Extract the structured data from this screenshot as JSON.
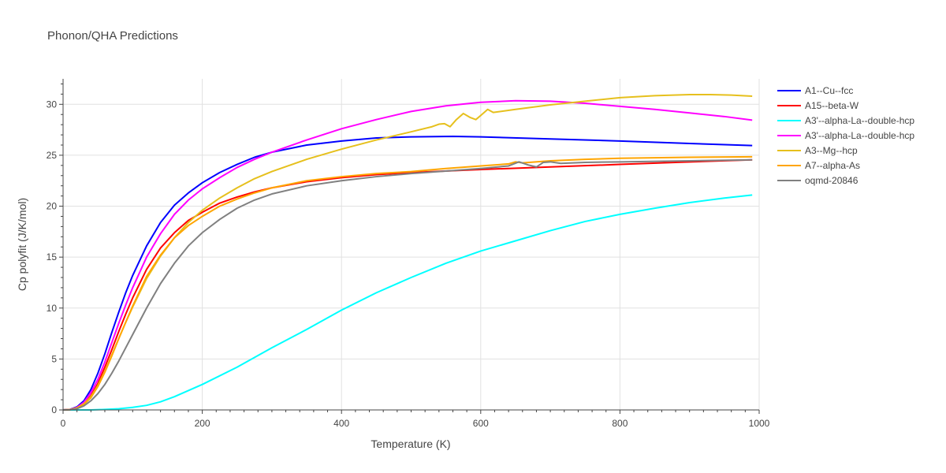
{
  "chart_data": {
    "type": "line",
    "title": "Phonon/QHA Predictions",
    "xlabel": "Temperature (K)",
    "ylabel": "Cp polyfit (J/K/mol)",
    "xlim": [
      0,
      1000
    ],
    "ylim": [
      0,
      32.5
    ],
    "xticks": [
      0,
      200,
      400,
      600,
      800,
      1000
    ],
    "yticks": [
      0,
      5,
      10,
      15,
      20,
      25,
      30
    ],
    "grid": true,
    "legend_position": "top-right",
    "series": [
      {
        "name": "A1--Cu--fcc",
        "color": "#0000ff",
        "points": [
          [
            0,
            0
          ],
          [
            10,
            0.05
          ],
          [
            20,
            0.3
          ],
          [
            30,
            0.9
          ],
          [
            40,
            2.0
          ],
          [
            50,
            3.6
          ],
          [
            60,
            5.5
          ],
          [
            70,
            7.6
          ],
          [
            80,
            9.6
          ],
          [
            90,
            11.5
          ],
          [
            100,
            13.2
          ],
          [
            120,
            16.1
          ],
          [
            140,
            18.4
          ],
          [
            160,
            20.1
          ],
          [
            180,
            21.3
          ],
          [
            200,
            22.3
          ],
          [
            225,
            23.3
          ],
          [
            250,
            24.1
          ],
          [
            275,
            24.8
          ],
          [
            300,
            25.3
          ],
          [
            350,
            26.0
          ],
          [
            400,
            26.4
          ],
          [
            450,
            26.7
          ],
          [
            500,
            26.8
          ],
          [
            560,
            26.85
          ],
          [
            600,
            26.8
          ],
          [
            700,
            26.6
          ],
          [
            800,
            26.4
          ],
          [
            900,
            26.15
          ],
          [
            990,
            25.95
          ]
        ]
      },
      {
        "name": "A15--beta-W",
        "color": "#ff0000",
        "points": [
          [
            0,
            0
          ],
          [
            10,
            0.03
          ],
          [
            20,
            0.2
          ],
          [
            30,
            0.6
          ],
          [
            40,
            1.4
          ],
          [
            50,
            2.6
          ],
          [
            60,
            4.2
          ],
          [
            70,
            5.9
          ],
          [
            80,
            7.7
          ],
          [
            90,
            9.4
          ],
          [
            100,
            11.0
          ],
          [
            120,
            13.8
          ],
          [
            140,
            15.9
          ],
          [
            160,
            17.4
          ],
          [
            180,
            18.6
          ],
          [
            200,
            19.4
          ],
          [
            225,
            20.3
          ],
          [
            250,
            20.9
          ],
          [
            275,
            21.4
          ],
          [
            300,
            21.8
          ],
          [
            350,
            22.4
          ],
          [
            400,
            22.8
          ],
          [
            450,
            23.1
          ],
          [
            500,
            23.3
          ],
          [
            600,
            23.6
          ],
          [
            700,
            23.85
          ],
          [
            800,
            24.1
          ],
          [
            900,
            24.35
          ],
          [
            990,
            24.55
          ]
        ]
      },
      {
        "name": "A3'--alpha-La--double-hcp",
        "color": "#00ffff",
        "points": [
          [
            0,
            0
          ],
          [
            40,
            0.0
          ],
          [
            60,
            0.05
          ],
          [
            80,
            0.12
          ],
          [
            100,
            0.25
          ],
          [
            120,
            0.45
          ],
          [
            140,
            0.8
          ],
          [
            160,
            1.3
          ],
          [
            180,
            1.9
          ],
          [
            200,
            2.5
          ],
          [
            250,
            4.2
          ],
          [
            300,
            6.1
          ],
          [
            350,
            7.9
          ],
          [
            400,
            9.8
          ],
          [
            450,
            11.5
          ],
          [
            500,
            13.0
          ],
          [
            550,
            14.4
          ],
          [
            600,
            15.6
          ],
          [
            650,
            16.6
          ],
          [
            700,
            17.6
          ],
          [
            750,
            18.5
          ],
          [
            800,
            19.2
          ],
          [
            850,
            19.8
          ],
          [
            900,
            20.35
          ],
          [
            950,
            20.8
          ],
          [
            990,
            21.1
          ]
        ]
      },
      {
        "name": "A3'--alpha-La--double-hcp",
        "color": "#ff00ff",
        "points": [
          [
            0,
            0
          ],
          [
            10,
            0.04
          ],
          [
            20,
            0.25
          ],
          [
            30,
            0.75
          ],
          [
            40,
            1.7
          ],
          [
            50,
            3.0
          ],
          [
            60,
            4.7
          ],
          [
            70,
            6.6
          ],
          [
            80,
            8.5
          ],
          [
            90,
            10.3
          ],
          [
            100,
            12.0
          ],
          [
            120,
            15.0
          ],
          [
            140,
            17.3
          ],
          [
            160,
            19.2
          ],
          [
            180,
            20.6
          ],
          [
            200,
            21.7
          ],
          [
            225,
            22.8
          ],
          [
            250,
            23.8
          ],
          [
            275,
            24.6
          ],
          [
            300,
            25.3
          ],
          [
            350,
            26.5
          ],
          [
            400,
            27.6
          ],
          [
            450,
            28.5
          ],
          [
            500,
            29.3
          ],
          [
            550,
            29.85
          ],
          [
            600,
            30.2
          ],
          [
            650,
            30.35
          ],
          [
            700,
            30.3
          ],
          [
            750,
            30.1
          ],
          [
            800,
            29.8
          ],
          [
            850,
            29.5
          ],
          [
            900,
            29.15
          ],
          [
            950,
            28.8
          ],
          [
            990,
            28.45
          ]
        ]
      },
      {
        "name": "A3--Mg--hcp",
        "color": "#e6c01d",
        "points": [
          [
            0,
            0
          ],
          [
            10,
            0.03
          ],
          [
            20,
            0.2
          ],
          [
            30,
            0.6
          ],
          [
            40,
            1.3
          ],
          [
            50,
            2.4
          ],
          [
            60,
            3.8
          ],
          [
            70,
            5.4
          ],
          [
            80,
            7.0
          ],
          [
            90,
            8.6
          ],
          [
            100,
            10.1
          ],
          [
            120,
            12.9
          ],
          [
            140,
            15.1
          ],
          [
            160,
            16.9
          ],
          [
            180,
            18.4
          ],
          [
            200,
            19.6
          ],
          [
            225,
            20.8
          ],
          [
            250,
            21.8
          ],
          [
            275,
            22.7
          ],
          [
            300,
            23.4
          ],
          [
            350,
            24.6
          ],
          [
            400,
            25.6
          ],
          [
            450,
            26.5
          ],
          [
            500,
            27.3
          ],
          [
            530,
            27.8
          ],
          [
            540,
            28.05
          ],
          [
            548,
            28.1
          ],
          [
            556,
            27.8
          ],
          [
            565,
            28.5
          ],
          [
            575,
            29.1
          ],
          [
            585,
            28.7
          ],
          [
            593,
            28.5
          ],
          [
            600,
            28.9
          ],
          [
            610,
            29.5
          ],
          [
            618,
            29.2
          ],
          [
            650,
            29.5
          ],
          [
            700,
            29.95
          ],
          [
            750,
            30.3
          ],
          [
            800,
            30.65
          ],
          [
            850,
            30.85
          ],
          [
            900,
            30.95
          ],
          [
            930,
            30.95
          ],
          [
            960,
            30.9
          ],
          [
            990,
            30.8
          ]
        ]
      },
      {
        "name": "A7--alpha-As",
        "color": "#ffa500",
        "points": [
          [
            0,
            0
          ],
          [
            10,
            0.03
          ],
          [
            20,
            0.18
          ],
          [
            30,
            0.55
          ],
          [
            40,
            1.2
          ],
          [
            50,
            2.3
          ],
          [
            60,
            3.7
          ],
          [
            70,
            5.3
          ],
          [
            80,
            7.0
          ],
          [
            90,
            8.6
          ],
          [
            100,
            10.2
          ],
          [
            120,
            13.1
          ],
          [
            140,
            15.2
          ],
          [
            160,
            16.9
          ],
          [
            180,
            18.1
          ],
          [
            200,
            19.0
          ],
          [
            225,
            20.0
          ],
          [
            250,
            20.7
          ],
          [
            275,
            21.3
          ],
          [
            300,
            21.8
          ],
          [
            350,
            22.5
          ],
          [
            400,
            22.9
          ],
          [
            450,
            23.2
          ],
          [
            500,
            23.4
          ],
          [
            550,
            23.7
          ],
          [
            600,
            23.95
          ],
          [
            640,
            24.15
          ],
          [
            650,
            24.35
          ],
          [
            660,
            24.25
          ],
          [
            700,
            24.45
          ],
          [
            750,
            24.6
          ],
          [
            800,
            24.7
          ],
          [
            900,
            24.8
          ],
          [
            990,
            24.85
          ]
        ]
      },
      {
        "name": "oqmd-20846",
        "color": "#808080",
        "points": [
          [
            0,
            0
          ],
          [
            10,
            0.02
          ],
          [
            20,
            0.12
          ],
          [
            30,
            0.4
          ],
          [
            40,
            0.9
          ],
          [
            50,
            1.6
          ],
          [
            60,
            2.5
          ],
          [
            70,
            3.6
          ],
          [
            80,
            4.8
          ],
          [
            90,
            6.1
          ],
          [
            100,
            7.4
          ],
          [
            120,
            10.0
          ],
          [
            140,
            12.4
          ],
          [
            160,
            14.4
          ],
          [
            180,
            16.1
          ],
          [
            200,
            17.4
          ],
          [
            225,
            18.7
          ],
          [
            250,
            19.8
          ],
          [
            275,
            20.6
          ],
          [
            300,
            21.2
          ],
          [
            350,
            22.0
          ],
          [
            400,
            22.5
          ],
          [
            450,
            22.9
          ],
          [
            500,
            23.2
          ],
          [
            550,
            23.45
          ],
          [
            600,
            23.7
          ],
          [
            640,
            23.95
          ],
          [
            655,
            24.35
          ],
          [
            668,
            24.05
          ],
          [
            680,
            23.85
          ],
          [
            690,
            24.3
          ],
          [
            700,
            24.35
          ],
          [
            715,
            24.2
          ],
          [
            750,
            24.3
          ],
          [
            800,
            24.35
          ],
          [
            900,
            24.45
          ],
          [
            990,
            24.55
          ]
        ]
      }
    ]
  }
}
